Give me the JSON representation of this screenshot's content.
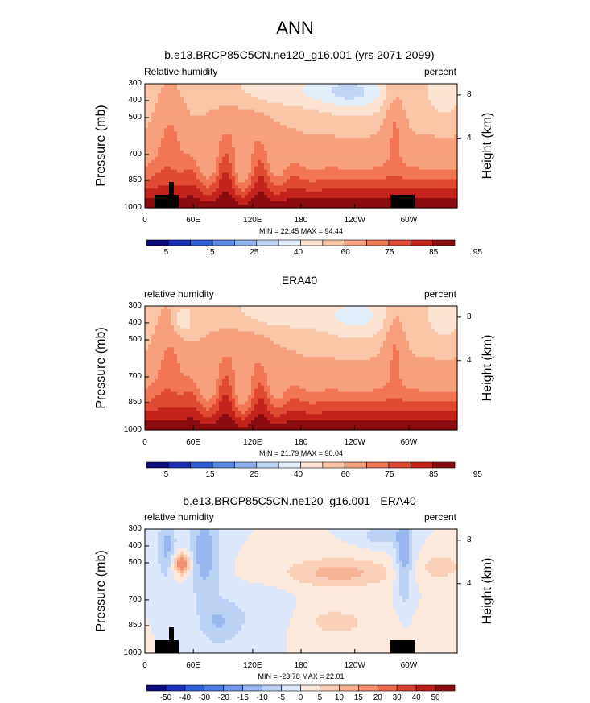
{
  "title": "ANN",
  "colors": {
    "abs_scale": [
      "#0a0a7a",
      "#1b2fb8",
      "#2f5fd6",
      "#5b8ae6",
      "#8fb0ee",
      "#bed5f4",
      "#e2eefa",
      "#fde4d2",
      "#fbc6a8",
      "#f7a07c",
      "#f07654",
      "#e04a30",
      "#c3231b",
      "#8a0c10"
    ],
    "diff_scale": [
      "#0a0a7a",
      "#1b2fb8",
      "#2f5fd6",
      "#4f7ce2",
      "#7599ea",
      "#98b6f0",
      "#bcd2f5",
      "#dde8fa",
      "#fdeadf",
      "#fbd0b8",
      "#f8b395",
      "#f39070",
      "#ea6a4c",
      "#d84130",
      "#bb1d1a",
      "#8a0c10"
    ]
  },
  "chart_data": [
    {
      "type": "heatmap",
      "title": "b.e13.BRCP85C5CN.ne120_g16.001 (yrs 2071-2099)",
      "left_label": "Relative humidity",
      "right_label": "percent",
      "ylabel": "Pressure (mb)",
      "ylabel_right": "Height (km)",
      "y_ticks": [
        "300",
        "400",
        "500",
        "700",
        "850",
        "1000"
      ],
      "y_right_ticks": [
        "8",
        "4"
      ],
      "x_ticks": [
        "0",
        "60E",
        "120E",
        "180",
        "120W",
        "60W"
      ],
      "min_max": "MIN = 22.45  MAX =  94.44",
      "colorbar_labels": [
        "5",
        "15",
        "25",
        "40",
        "60",
        "75",
        "85",
        "95"
      ],
      "topography": true
    },
    {
      "type": "heatmap",
      "title": "ERA40",
      "left_label": "relative humidity",
      "right_label": "percent",
      "ylabel": "Pressure (mb)",
      "ylabel_right": "Height (km)",
      "y_ticks": [
        "300",
        "400",
        "500",
        "700",
        "850",
        "1000"
      ],
      "y_right_ticks": [
        "8",
        "4"
      ],
      "x_ticks": [
        "0",
        "60E",
        "120E",
        "180",
        "120W",
        "60W"
      ],
      "min_max": "MIN = 21.79  MAX =  90.04",
      "colorbar_labels": [
        "5",
        "15",
        "25",
        "40",
        "60",
        "75",
        "85",
        "95"
      ],
      "topography": false
    },
    {
      "type": "heatmap",
      "title": "b.e13.BRCP85C5CN.ne120_g16.001 - ERA40",
      "left_label": "relative humidity",
      "right_label": "percent",
      "ylabel": "Pressure (mb)",
      "ylabel_right": "Height (km)",
      "y_ticks": [
        "300",
        "400",
        "500",
        "700",
        "850",
        "1000"
      ],
      "y_right_ticks": [
        "8",
        "4"
      ],
      "x_ticks": [
        "0",
        "60E",
        "120E",
        "180",
        "120W",
        "60W"
      ],
      "min_max": "MIN = -23.78  MAX =  22.01",
      "colorbar_labels": [
        "-50",
        "-40",
        "-30",
        "-20",
        "-15",
        "-10",
        "-5",
        "0",
        "5",
        "10",
        "15",
        "20",
        "30",
        "40",
        "50"
      ],
      "topography": true
    }
  ]
}
